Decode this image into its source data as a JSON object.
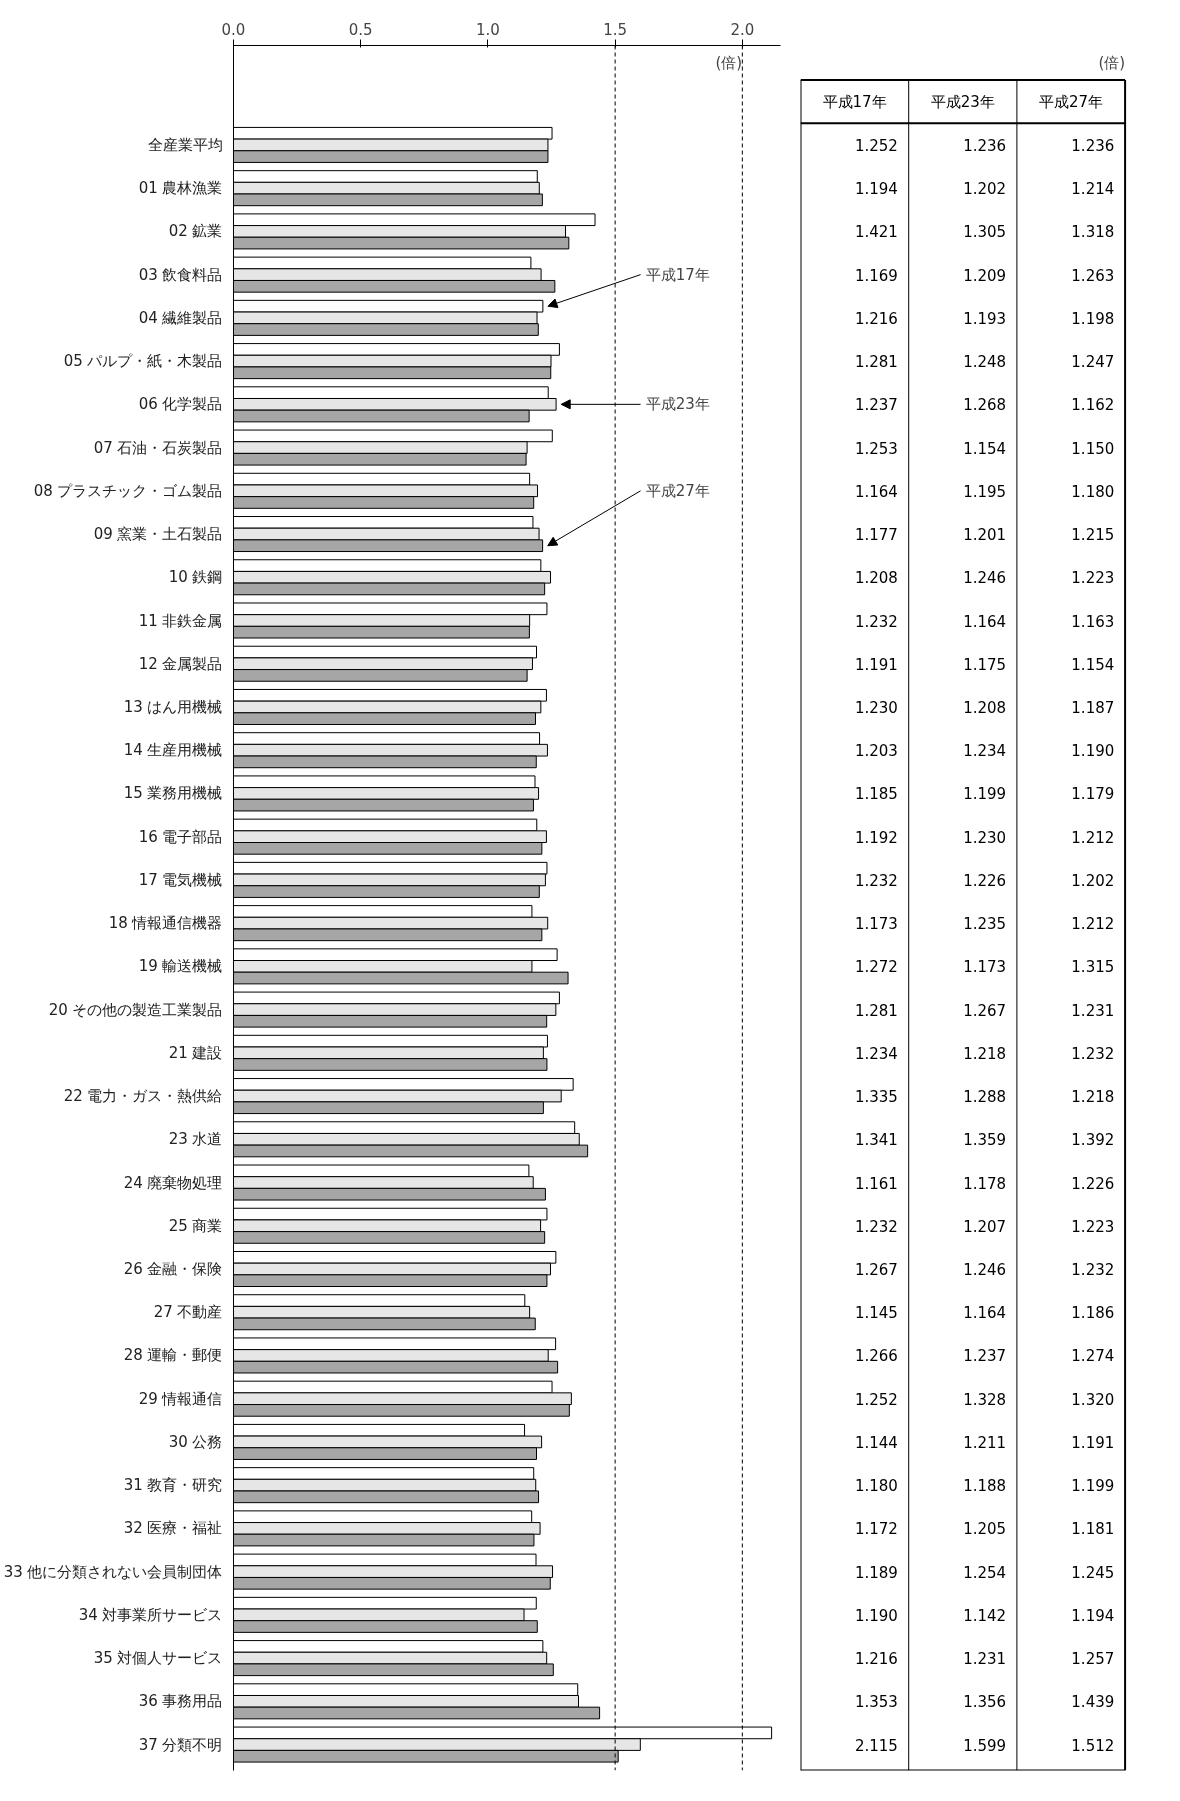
{
  "chart_data": [
    {
      "type": "bar",
      "orientation": "horizontal",
      "categories": [
        "全産業平均",
        "01 農林漁業",
        "02 鉱業",
        "03 飲食料品",
        "04 繊維製品",
        "05 パルプ・紙・木製品",
        "06 化学製品",
        "07 石油・石炭製品",
        "08 プラスチック・ゴム製品",
        "09 窯業・土石製品",
        "10 鉄鋼",
        "11 非鉄金属",
        "12 金属製品",
        "13 はん用機械",
        "14 生産用機械",
        "15 業務用機械",
        "16 電子部品",
        "17 電気機械",
        "18 情報通信機器",
        "19 輸送機械",
        "20 その他の製造工業製品",
        "21 建設",
        "22 電力・ガス・熱供給",
        "23 水道",
        "24 廃棄物処理",
        "25 商業",
        "26 金融・保険",
        "27 不動産",
        "28 運輸・郵便",
        "29 情報通信",
        "30 公務",
        "31 教育・研究",
        "32 医療・福祉",
        "33 他に分類されない会員制団体",
        "34 対事業所サービス",
        "35 対個人サービス",
        "36 事務用品",
        "37 分類不明"
      ],
      "series": [
        {
          "name": "平成17年",
          "color": "#ffffff",
          "values": [
            1.252,
            1.194,
            1.421,
            1.169,
            1.216,
            1.281,
            1.237,
            1.253,
            1.164,
            1.177,
            1.208,
            1.232,
            1.191,
            1.23,
            1.203,
            1.185,
            1.192,
            1.232,
            1.173,
            1.272,
            1.281,
            1.234,
            1.335,
            1.341,
            1.161,
            1.232,
            1.267,
            1.145,
            1.266,
            1.252,
            1.144,
            1.18,
            1.172,
            1.189,
            1.19,
            1.216,
            1.353,
            2.115
          ]
        },
        {
          "name": "平成23年",
          "color": "#e6e6e6",
          "values": [
            1.236,
            1.202,
            1.305,
            1.209,
            1.193,
            1.248,
            1.268,
            1.154,
            1.195,
            1.201,
            1.246,
            1.164,
            1.175,
            1.208,
            1.234,
            1.199,
            1.23,
            1.226,
            1.235,
            1.173,
            1.267,
            1.218,
            1.288,
            1.359,
            1.178,
            1.207,
            1.246,
            1.164,
            1.237,
            1.328,
            1.211,
            1.188,
            1.205,
            1.254,
            1.142,
            1.231,
            1.356,
            1.599
          ]
        },
        {
          "name": "平成27年",
          "color": "#a6a6a6",
          "values": [
            1.236,
            1.214,
            1.318,
            1.263,
            1.198,
            1.247,
            1.162,
            1.15,
            1.18,
            1.215,
            1.223,
            1.163,
            1.154,
            1.187,
            1.19,
            1.179,
            1.212,
            1.202,
            1.212,
            1.315,
            1.231,
            1.232,
            1.218,
            1.392,
            1.226,
            1.223,
            1.232,
            1.186,
            1.274,
            1.32,
            1.191,
            1.199,
            1.181,
            1.245,
            1.194,
            1.257,
            1.439,
            1.512
          ]
        }
      ],
      "xlim": [
        0,
        2.15
      ],
      "xticks": [
        {
          "value": 0,
          "label": "0.0"
        },
        {
          "value": 0.5,
          "label": "0.5"
        },
        {
          "value": 1.0,
          "label": "1.0"
        },
        {
          "value": 1.5,
          "label": "1.5"
        },
        {
          "value": 2.0,
          "label": "2.0"
        }
      ],
      "ref_lines": [
        {
          "axis": "x",
          "value": 1.5,
          "line_style": "dashed"
        },
        {
          "axis": "x",
          "value": 2.0,
          "line_style": "dashed"
        }
      ],
      "annotations": [
        "(倍)"
      ]
    },
    {
      "type": "other",
      "categories": [
        "平成17年",
        "平成23年",
        "平成27年"
      ],
      "cell_labels": [
        [
          "1.252",
          "1.236",
          "1.236"
        ],
        [
          "1.194",
          "1.202",
          "1.214"
        ],
        [
          "1.421",
          "1.305",
          "1.318"
        ],
        [
          "1.169",
          "1.209",
          "1.263"
        ],
        [
          "1.216",
          "1.193",
          "1.198"
        ],
        [
          "1.281",
          "1.248",
          "1.247"
        ],
        [
          "1.237",
          "1.268",
          "1.162"
        ],
        [
          "1.253",
          "1.154",
          "1.150"
        ],
        [
          "1.164",
          "1.195",
          "1.180"
        ],
        [
          "1.177",
          "1.201",
          "1.215"
        ],
        [
          "1.208",
          "1.246",
          "1.223"
        ],
        [
          "1.232",
          "1.164",
          "1.163"
        ],
        [
          "1.191",
          "1.175",
          "1.154"
        ],
        [
          "1.230",
          "1.208",
          "1.187"
        ],
        [
          "1.203",
          "1.234",
          "1.190"
        ],
        [
          "1.185",
          "1.199",
          "1.179"
        ],
        [
          "1.192",
          "1.230",
          "1.212"
        ],
        [
          "1.232",
          "1.226",
          "1.202"
        ],
        [
          "1.173",
          "1.235",
          "1.212"
        ],
        [
          "1.272",
          "1.173",
          "1.315"
        ],
        [
          "1.281",
          "1.267",
          "1.231"
        ],
        [
          "1.234",
          "1.218",
          "1.232"
        ],
        [
          "1.335",
          "1.288",
          "1.218"
        ],
        [
          "1.341",
          "1.359",
          "1.392"
        ],
        [
          "1.161",
          "1.178",
          "1.226"
        ],
        [
          "1.232",
          "1.207",
          "1.223"
        ],
        [
          "1.267",
          "1.246",
          "1.232"
        ],
        [
          "1.145",
          "1.164",
          "1.186"
        ],
        [
          "1.266",
          "1.237",
          "1.274"
        ],
        [
          "1.252",
          "1.328",
          "1.320"
        ],
        [
          "1.144",
          "1.211",
          "1.191"
        ],
        [
          "1.180",
          "1.188",
          "1.199"
        ],
        [
          "1.172",
          "1.205",
          "1.181"
        ],
        [
          "1.189",
          "1.254",
          "1.245"
        ],
        [
          "1.190",
          "1.142",
          "1.194"
        ],
        [
          "1.216",
          "1.231",
          "1.257"
        ],
        [
          "1.353",
          "1.356",
          "1.439"
        ],
        [
          "2.115",
          "1.599",
          "1.512"
        ]
      ],
      "annotations": [
        "(倍)"
      ]
    }
  ]
}
